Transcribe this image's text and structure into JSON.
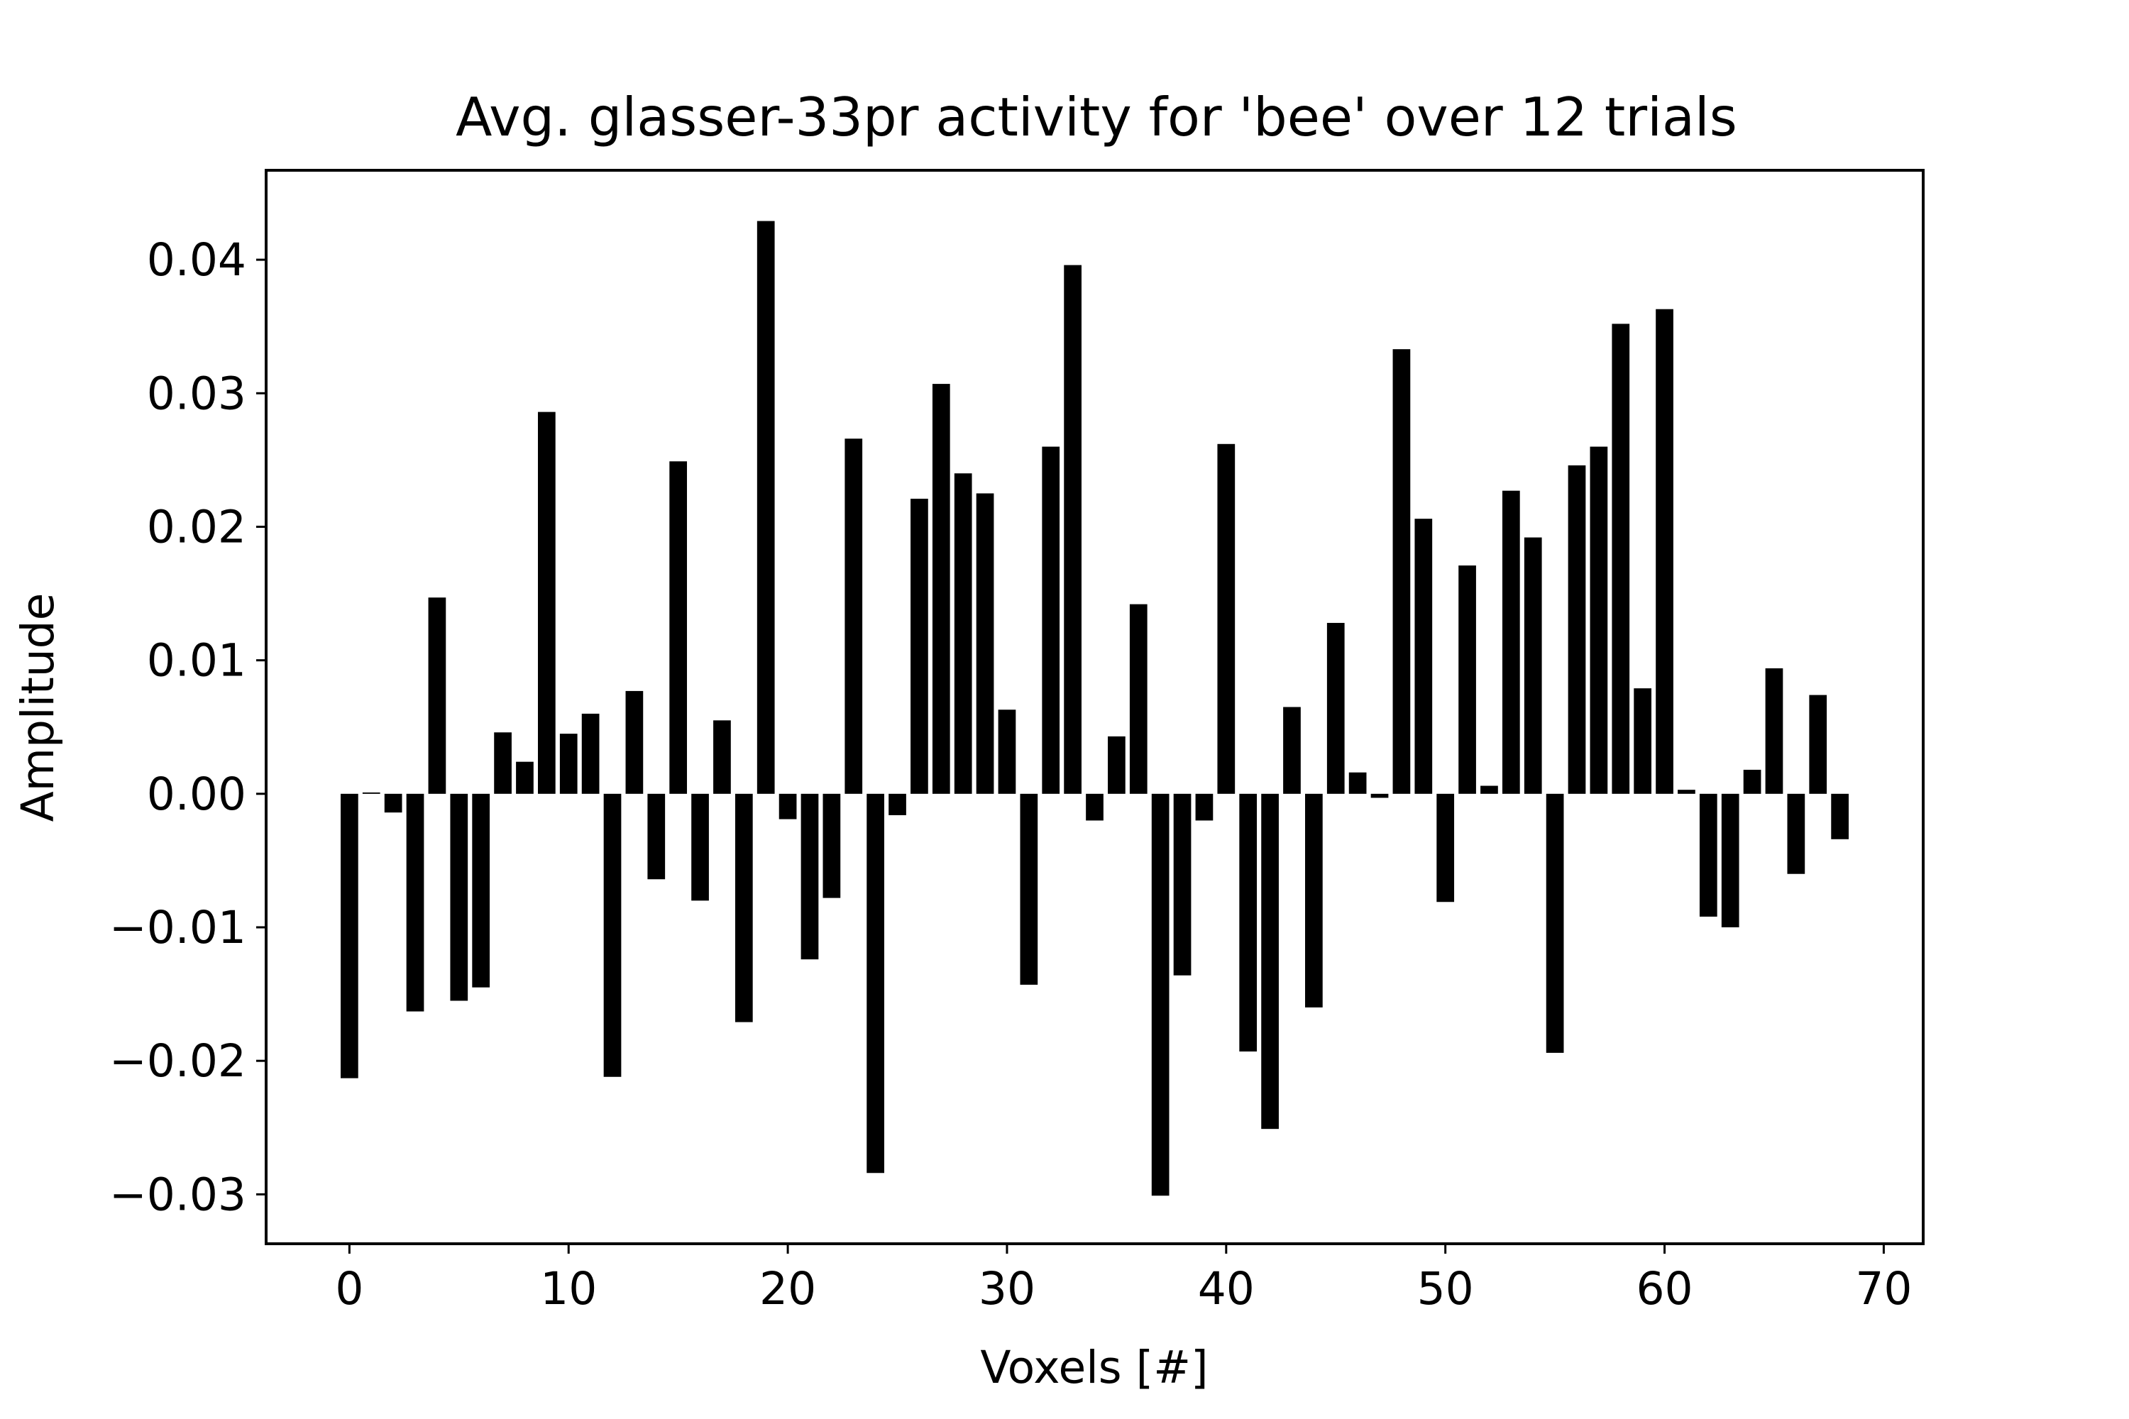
{
  "chart_data": {
    "type": "bar",
    "title": "Avg. glasser-33pr activity for 'bee' over 12 trials",
    "xlabel": "Voxels [#]",
    "ylabel": "Amplitude",
    "xlim": [
      -3.8,
      71.8
    ],
    "ylim": [
      -0.0337,
      0.0467
    ],
    "xticks": [
      0,
      10,
      20,
      30,
      40,
      50,
      60,
      70
    ],
    "xtick_labels": [
      "0",
      "10",
      "20",
      "30",
      "40",
      "50",
      "60",
      "70"
    ],
    "yticks": [
      -0.03,
      -0.02,
      -0.01,
      0.0,
      0.01,
      0.02,
      0.03,
      0.04
    ],
    "ytick_labels": [
      "−0.03",
      "−0.02",
      "−0.01",
      "0.00",
      "0.01",
      "0.02",
      "0.03",
      "0.04"
    ],
    "grid": false,
    "bar_color": "#000000",
    "x": [
      0,
      1,
      2,
      3,
      4,
      5,
      6,
      7,
      8,
      9,
      10,
      11,
      12,
      13,
      14,
      15,
      16,
      17,
      18,
      19,
      20,
      21,
      22,
      23,
      24,
      25,
      26,
      27,
      28,
      29,
      30,
      31,
      32,
      33,
      34,
      35,
      36,
      37,
      38,
      39,
      40,
      41,
      42,
      43,
      44,
      45,
      46,
      47,
      48,
      49,
      50,
      51,
      52,
      53,
      54,
      55,
      56,
      57,
      58,
      59,
      60,
      61,
      62,
      63,
      64,
      65,
      66,
      67,
      68
    ],
    "values": [
      -0.0213,
      0.0001,
      -0.0014,
      -0.0163,
      0.0147,
      -0.0155,
      -0.0145,
      0.0046,
      0.0024,
      0.0286,
      0.0045,
      0.006,
      -0.0212,
      0.0077,
      -0.0064,
      0.0249,
      -0.008,
      0.0055,
      -0.0171,
      0.0429,
      -0.0019,
      -0.0124,
      -0.0078,
      0.0266,
      -0.0284,
      -0.0016,
      0.0221,
      0.0307,
      0.024,
      0.0225,
      0.0063,
      -0.0143,
      0.026,
      0.0396,
      -0.002,
      0.0043,
      0.0142,
      -0.0301,
      -0.0136,
      -0.002,
      0.0262,
      -0.0193,
      -0.0251,
      0.0065,
      -0.016,
      0.0128,
      0.0016,
      -0.0003,
      0.0333,
      0.0206,
      -0.0081,
      0.0171,
      0.0006,
      0.0227,
      0.0192,
      -0.0194,
      0.0246,
      0.026,
      0.0352,
      0.0079,
      0.0363,
      0.0003,
      -0.0092,
      -0.01,
      0.0018,
      0.0094,
      -0.006,
      0.0074,
      -0.0034
    ]
  }
}
